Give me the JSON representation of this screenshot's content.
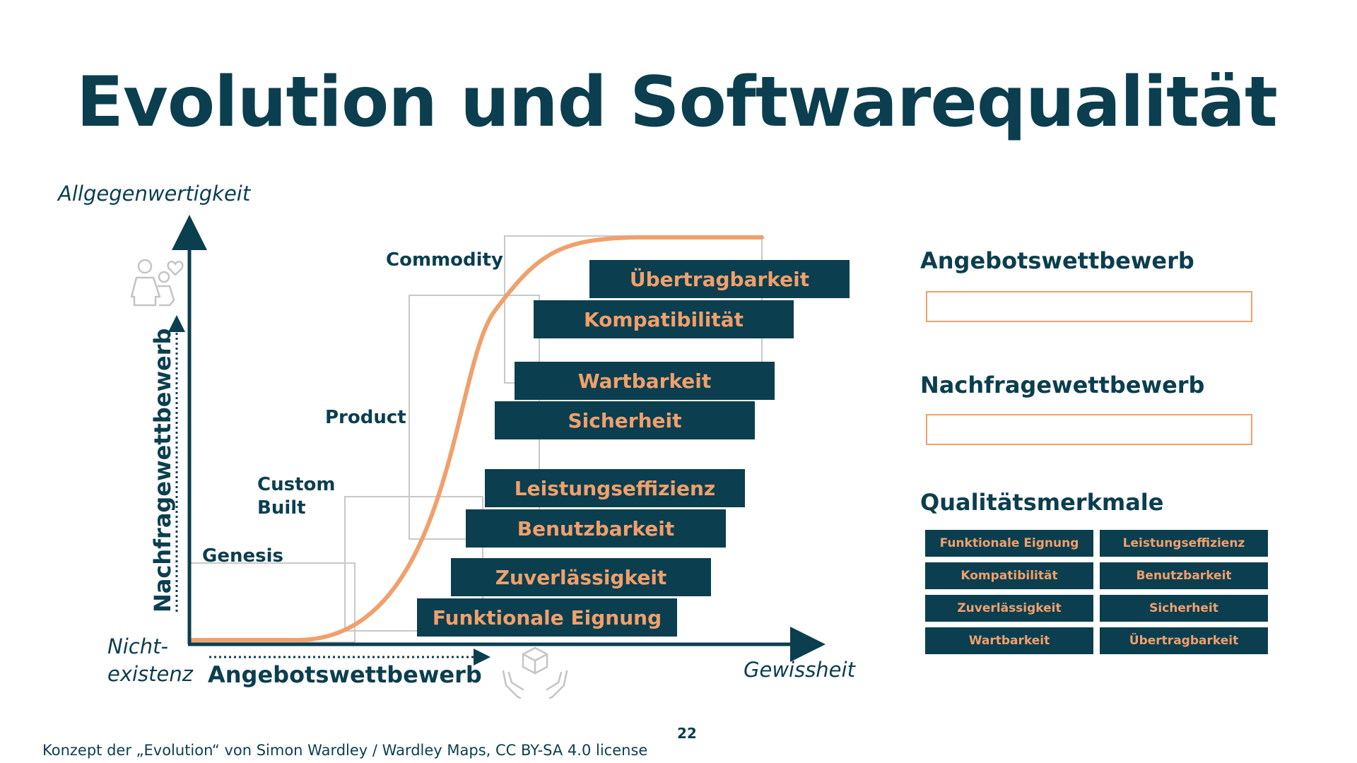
{
  "slide": {
    "title": "Evolution und Softwarequalität",
    "page_number": "22",
    "credit": "Konzept der „Evolution“ von Simon Wardley / Wardley Maps, CC BY-SA 4.0 license"
  },
  "colors": {
    "navy": "#0b3e4f",
    "orange": "#f0a06c",
    "gray": "#c8c8c8"
  },
  "diagram": {
    "y_axis_top_label": "Allgegenwertigkeit",
    "origin_label_line1": "Nicht-",
    "origin_label_line2": "existenz",
    "x_axis_end_label": "Gewissheit",
    "x_axis_arrow_label": "Angebotswettbewerb",
    "y_axis_arrow_label": "Nachfragewettbewerb",
    "icons": [
      "people-heart-icon",
      "hand-box-icon"
    ],
    "stages": {
      "genesis": "Genesis",
      "custom_line1": "Custom",
      "custom_line2": "Built",
      "product": "Product",
      "commodity": "Commodity"
    },
    "bars": [
      "Übertragbarkeit",
      "Kompatibilität",
      "Wartbarkeit",
      "Sicherheit",
      "Leistungseffizienz",
      "Benutzbarkeit",
      "Zuverlässigkeit",
      "Funktionale Eignung"
    ]
  },
  "panel": {
    "supply_heading": "Angebotswettbewerb",
    "demand_heading": "Nachfragewettbewerb",
    "quality_heading": "Qualitätsmerkmale",
    "quality_items": [
      "Funktionale Eignung",
      "Leistungseffizienz",
      "Kompatibilität",
      "Benutzbarkeit",
      "Zuverlässigkeit",
      "Sicherheit",
      "Wartbarkeit",
      "Übertragbarkeit"
    ]
  }
}
